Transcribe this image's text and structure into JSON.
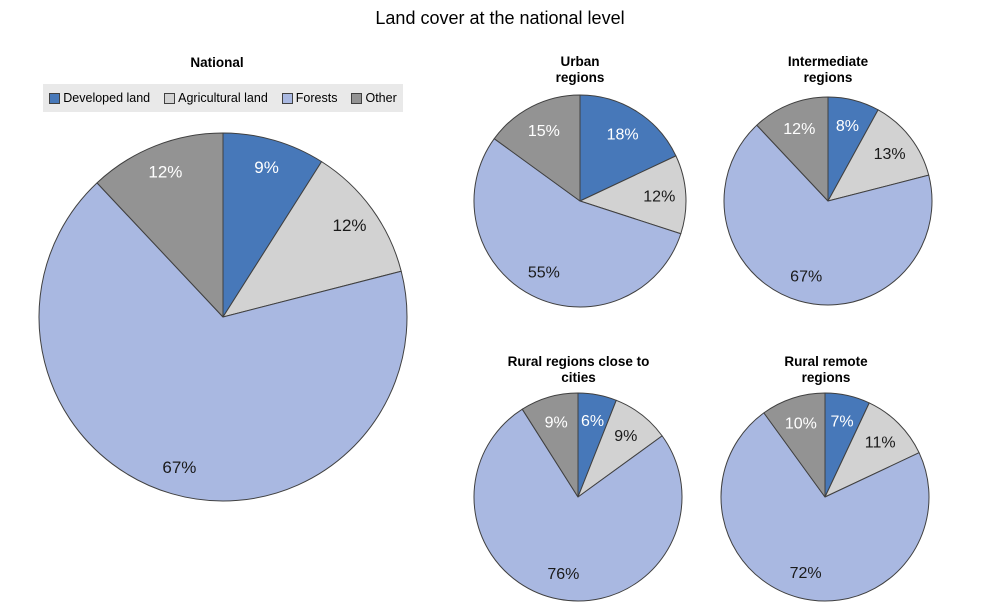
{
  "title": "Land cover at the national level",
  "colors": {
    "developed_land": "#4778B9",
    "agricultural_land": "#D2D2D2",
    "forests": "#A9B8E1",
    "other": "#939393",
    "slice_border": "#404040",
    "legend_background": "#E9E9E9",
    "swatch_border": "#404040",
    "label_on_dark": "#FFFFFF",
    "label_on_light": "#1A1A1A"
  },
  "categories_style": [
    {
      "name": "Developed land",
      "color": "#4778B9",
      "label_color": "#FFFFFF"
    },
    {
      "name": "Agricultural land",
      "color": "#D2D2D2",
      "label_color": "#1A1A1A"
    },
    {
      "name": "Forests",
      "color": "#A9B8E1",
      "label_color": "#1A1A1A"
    },
    {
      "name": "Other",
      "color": "#939393",
      "label_color": "#FFFFFF"
    }
  ],
  "legend": {
    "items": [
      "Developed land",
      "Agricultural land",
      "Forests",
      "Other"
    ],
    "position": "top-left"
  },
  "chart_data": [
    {
      "type": "pie",
      "title": "National",
      "unit": "%",
      "direction": "clockwise",
      "start_angle_deg": 0,
      "categories": [
        "Developed land",
        "Agricultural land",
        "Forests",
        "Other"
      ],
      "values": [
        9,
        12,
        67,
        12
      ]
    },
    {
      "type": "pie",
      "title": "Urban regions",
      "unit": "%",
      "direction": "clockwise",
      "start_angle_deg": 0,
      "categories": [
        "Developed land",
        "Agricultural land",
        "Forests",
        "Other"
      ],
      "values": [
        18,
        12,
        55,
        15
      ]
    },
    {
      "type": "pie",
      "title": "Intermediate regions",
      "unit": "%",
      "direction": "clockwise",
      "start_angle_deg": 0,
      "categories": [
        "Developed land",
        "Agricultural land",
        "Forests",
        "Other"
      ],
      "values": [
        8,
        13,
        67,
        12
      ]
    },
    {
      "type": "pie",
      "title": "Rural regions close to cities",
      "unit": "%",
      "direction": "clockwise",
      "start_angle_deg": 0,
      "categories": [
        "Developed land",
        "Agricultural land",
        "Forests",
        "Other"
      ],
      "values": [
        6,
        9,
        76,
        9
      ]
    },
    {
      "type": "pie",
      "title": "Rural remote regions",
      "unit": "%",
      "direction": "clockwise",
      "start_angle_deg": 0,
      "categories": [
        "Developed land",
        "Agricultural land",
        "Forests",
        "Other"
      ],
      "values": [
        7,
        11,
        72,
        10
      ]
    }
  ]
}
